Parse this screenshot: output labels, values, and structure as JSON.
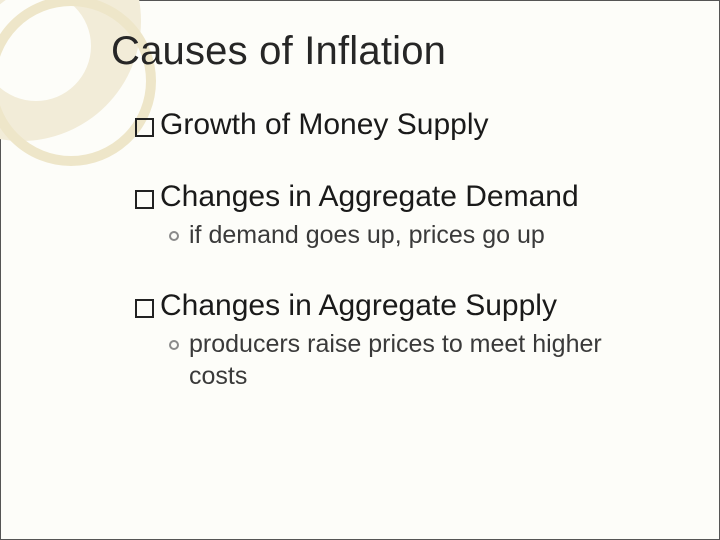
{
  "slide": {
    "title": "Causes of Inflation",
    "title_fontsize": 40,
    "title_color": "#262626",
    "background_color": "#fdfdf9",
    "decoration_colors": {
      "fill": "#f2ecd8",
      "ring": "#eee6c9"
    },
    "bullets": [
      {
        "text": "Growth of Money Supply",
        "sub": []
      },
      {
        "text": "Changes in Aggregate Demand",
        "sub": [
          "if demand goes up, prices go up"
        ]
      },
      {
        "text": "Changes in Aggregate Supply",
        "sub": [
          "producers raise prices to meet higher costs"
        ]
      }
    ],
    "bullet_fontsize": 30,
    "bullet_marker": "hollow-square",
    "sub_fontsize": 25,
    "sub_marker": "hollow-circle",
    "sub_color": "#3a3a3a"
  }
}
